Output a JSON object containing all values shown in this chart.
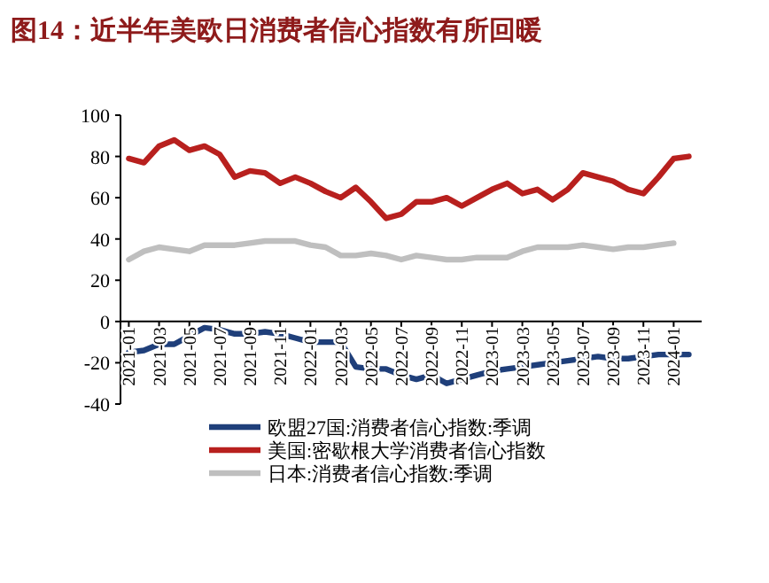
{
  "chart_data": {
    "type": "line",
    "title": "图14：近半年美欧日消费者信心指数有所回暖",
    "categories": [
      "2021-01",
      null,
      "2021-03",
      null,
      "2021-05",
      null,
      "2021-07",
      null,
      "2021-09",
      null,
      "2021-11",
      null,
      "2022-01",
      null,
      "2022-03",
      null,
      "2022-05",
      null,
      "2022-07",
      null,
      "2022-09",
      null,
      "2022-11",
      null,
      "2023-01",
      null,
      "2023-03",
      null,
      "2023-05",
      null,
      "2023-07",
      null,
      "2023-09",
      null,
      "2023-11",
      null,
      "2024-01",
      null
    ],
    "series": [
      {
        "name": "欧盟27国:消费者信心指数:季调",
        "color": "#1f3f7a",
        "values": [
          -15,
          -14,
          -11,
          -11,
          -7,
          -3,
          -4,
          -6,
          -6,
          -5,
          -6,
          -8,
          -10,
          -10,
          -10,
          -22,
          -23,
          -23,
          -26,
          -28,
          -26,
          -30,
          -28,
          -26,
          -24,
          -23,
          -22,
          -21,
          -20,
          -19,
          -18,
          -17,
          -18,
          -18,
          -17,
          -16,
          -16,
          -16
        ]
      },
      {
        "name": "美国:密歇根大学消费者信心指数",
        "color": "#b8201e",
        "values": [
          79,
          77,
          85,
          88,
          83,
          85,
          81,
          70,
          73,
          72,
          67,
          70,
          67,
          63,
          60,
          65,
          58,
          50,
          52,
          58,
          58,
          60,
          56,
          60,
          64,
          67,
          62,
          64,
          59,
          64,
          72,
          70,
          68,
          64,
          62,
          70,
          79,
          80
        ]
      },
      {
        "name": "日本:消费者信心指数:季调",
        "color": "#bfbfbf",
        "values": [
          30,
          34,
          36,
          35,
          34,
          37,
          37,
          37,
          38,
          39,
          39,
          39,
          37,
          36,
          32,
          32,
          33,
          32,
          30,
          32,
          31,
          30,
          30,
          31,
          31,
          31,
          34,
          36,
          36,
          36,
          37,
          36,
          35,
          36,
          36,
          37,
          38,
          null
        ]
      }
    ],
    "ylim": [
      -40,
      100
    ],
    "yticks": [
      -40,
      -20,
      0,
      20,
      40,
      60,
      80,
      100
    ],
    "legend": "bottom",
    "grid": false
  }
}
